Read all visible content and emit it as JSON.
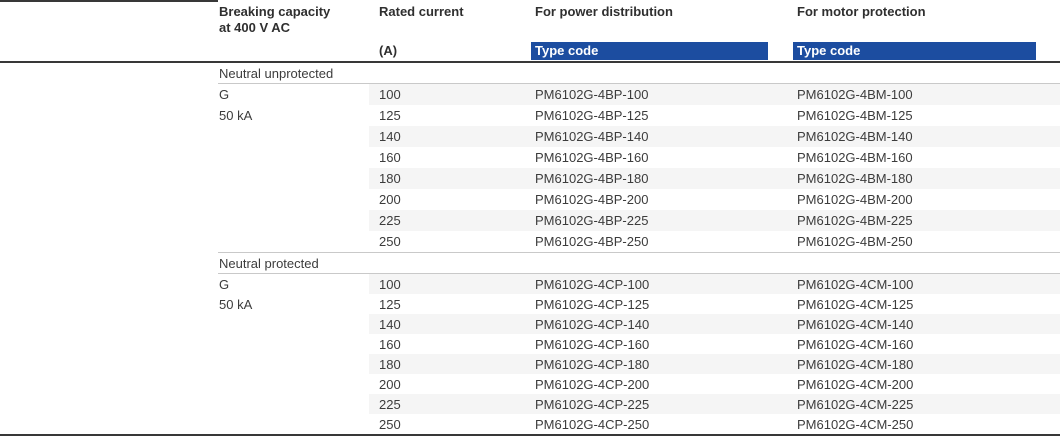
{
  "table": {
    "header": {
      "breaking_capacity": "Breaking capacity\nat 400 V AC",
      "rated_current": "Rated current",
      "rated_current_unit": "(A)",
      "power_distribution": "For power distribution",
      "motor_protection": "For motor protection",
      "type_code_power": "Type code",
      "type_code_motor": "Type code"
    },
    "sections": [
      {
        "title": "Neutral unprotected",
        "breaking_capacity_lines": [
          "G",
          "50 kA"
        ],
        "rows": [
          {
            "current": "100",
            "power_code": "PM6102G-4BP-100",
            "motor_code": "PM6102G-4BM-100"
          },
          {
            "current": "125",
            "power_code": "PM6102G-4BP-125",
            "motor_code": "PM6102G-4BM-125"
          },
          {
            "current": "140",
            "power_code": "PM6102G-4BP-140",
            "motor_code": "PM6102G-4BM-140"
          },
          {
            "current": "160",
            "power_code": "PM6102G-4BP-160",
            "motor_code": "PM6102G-4BM-160"
          },
          {
            "current": "180",
            "power_code": "PM6102G-4BP-180",
            "motor_code": "PM6102G-4BM-180"
          },
          {
            "current": "200",
            "power_code": "PM6102G-4BP-200",
            "motor_code": "PM6102G-4BM-200"
          },
          {
            "current": "225",
            "power_code": "PM6102G-4BP-225",
            "motor_code": "PM6102G-4BM-225"
          },
          {
            "current": "250",
            "power_code": "PM6102G-4BP-250",
            "motor_code": "PM6102G-4BM-250"
          }
        ]
      },
      {
        "title": "Neutral protected",
        "breaking_capacity_lines": [
          "G",
          "50 kA"
        ],
        "rows": [
          {
            "current": "100",
            "power_code": "PM6102G-4CP-100",
            "motor_code": "PM6102G-4CM-100"
          },
          {
            "current": "125",
            "power_code": "PM6102G-4CP-125",
            "motor_code": "PM6102G-4CM-125"
          },
          {
            "current": "140",
            "power_code": "PM6102G-4CP-140",
            "motor_code": "PM6102G-4CM-140"
          },
          {
            "current": "160",
            "power_code": "PM6102G-4CP-160",
            "motor_code": "PM6102G-4CM-160"
          },
          {
            "current": "180",
            "power_code": "PM6102G-4CP-180",
            "motor_code": "PM6102G-4CM-180"
          },
          {
            "current": "200",
            "power_code": "PM6102G-4CP-200",
            "motor_code": "PM6102G-4CM-200"
          },
          {
            "current": "225",
            "power_code": "PM6102G-4CP-225",
            "motor_code": "PM6102G-4CM-225"
          },
          {
            "current": "250",
            "power_code": "PM6102G-4CP-250",
            "motor_code": "PM6102G-4CM-250"
          }
        ]
      }
    ],
    "colors": {
      "accent_blue": "#1c4da0",
      "row_stripe": "#f5f5f5",
      "rule_dark": "#383838",
      "rule_light": "#c9c9c9",
      "text": "#3c3c3c"
    }
  }
}
